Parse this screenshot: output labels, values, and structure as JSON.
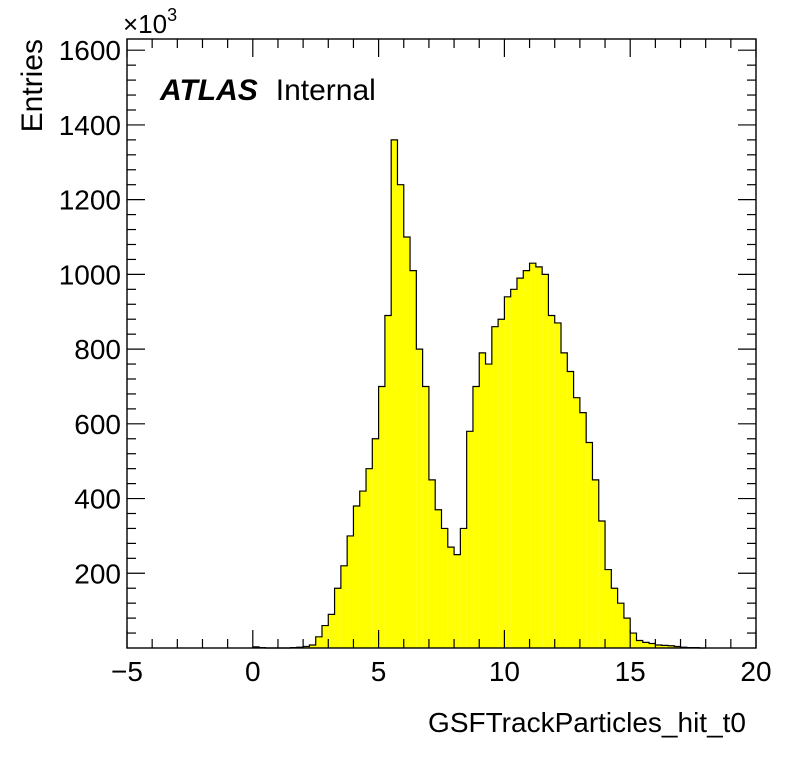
{
  "chart_data": {
    "type": "bar",
    "style": "histogram",
    "xlabel": "GSFTrackParticles_hit_t0",
    "ylabel": "Entries",
    "y_multiplier_label": "×10",
    "y_multiplier_exponent": "3",
    "xlim": [
      -5,
      20
    ],
    "ylim": [
      0,
      1630
    ],
    "x_ticks": [
      -5,
      0,
      5,
      10,
      15,
      20
    ],
    "x_tick_labels": [
      "−5",
      "0",
      "5",
      "10",
      "15",
      "20"
    ],
    "y_ticks": [
      200,
      400,
      600,
      800,
      1000,
      1200,
      1400,
      1600
    ],
    "y_tick_labels": [
      "200",
      "400",
      "600",
      "800",
      "1000",
      "1200",
      "1400",
      "1600"
    ],
    "fill_color": "#ffff00",
    "line_color": "#000000",
    "bins": {
      "x_start": 0.0,
      "width": 0.25,
      "values": [
        3,
        1,
        0,
        0,
        0,
        0,
        1,
        2,
        4,
        8,
        30,
        60,
        90,
        160,
        220,
        300,
        380,
        420,
        480,
        560,
        700,
        890,
        1360,
        1240,
        1100,
        1010,
        800,
        700,
        450,
        370,
        320,
        270,
        250,
        320,
        580,
        700,
        790,
        760,
        860,
        880,
        940,
        960,
        990,
        1010,
        1030,
        1020,
        1000,
        890,
        870,
        790,
        740,
        670,
        630,
        550,
        450,
        340,
        210,
        160,
        120,
        80,
        40,
        20,
        15,
        12,
        8,
        7,
        6,
        4,
        2,
        1,
        1,
        0
      ]
    },
    "grid": false,
    "legend": "none",
    "annotations": [
      {
        "bold": "ATLAS",
        "normal": "Internal"
      }
    ]
  }
}
